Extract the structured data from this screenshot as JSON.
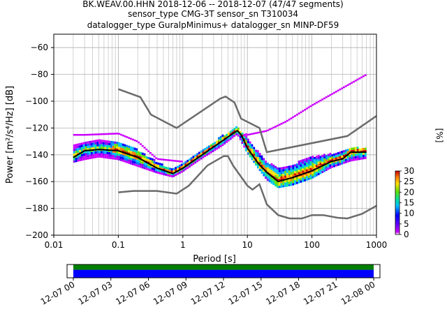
{
  "title": {
    "line1": "BK.WEAV.00.HHN   2018-12-06 -- 2018-12-07  (47/47 segments)",
    "line2": "sensor_type CMG-3T sensor_sn T310034",
    "line3": "datalogger_type GuralpMinimus+ datalogger_sn MINP-DF59"
  },
  "colorbar": {
    "label": "[%]",
    "ticks": [
      "0",
      "5",
      "10",
      "15",
      "20",
      "25",
      "30"
    ],
    "range": [
      0,
      30
    ]
  },
  "colors": {
    "noise_model": "#6b6b6b",
    "mode_line": "#000000",
    "spread_outer": "#cc00ff",
    "spread_mid": "#0000ff",
    "spread_core": "#00e0a0",
    "coverage_green": "#008000",
    "coverage_blue": "#0000ff"
  },
  "chart_data": {
    "type": "ppsd",
    "xlabel": "Period [s]",
    "ylabel": "Power [m²/s⁴/Hz] [dB]",
    "xscale": "log",
    "xlim": [
      0.01,
      1000
    ],
    "ylim": [
      -200,
      -50
    ],
    "xticks": [
      {
        "value": 0.01,
        "label": "0.01"
      },
      {
        "value": 0.1,
        "label": "0.1"
      },
      {
        "value": 1,
        "label": "1"
      },
      {
        "value": 10,
        "label": "10"
      },
      {
        "value": 100,
        "label": "100"
      },
      {
        "value": 1000,
        "label": "1000"
      }
    ],
    "yticks": [
      -60,
      -80,
      -100,
      -120,
      -140,
      -160,
      -180,
      -200
    ],
    "grid": true,
    "nhnm": [
      [
        0.1,
        -91
      ],
      [
        0.22,
        -97
      ],
      [
        0.32,
        -110
      ],
      [
        0.8,
        -120
      ],
      [
        3.8,
        -98
      ],
      [
        4.6,
        -96.5
      ],
      [
        6.3,
        -101
      ],
      [
        8,
        -113
      ],
      [
        15.4,
        -120
      ],
      [
        20,
        -138
      ],
      [
        354.8,
        -126
      ],
      [
        1000,
        -111
      ]
    ],
    "nlnm": [
      [
        0.1,
        -168
      ],
      [
        0.17,
        -167
      ],
      [
        0.4,
        -167
      ],
      [
        0.8,
        -169
      ],
      [
        1.24,
        -163
      ],
      [
        2.4,
        -148
      ],
      [
        4.3,
        -141
      ],
      [
        5,
        -141
      ],
      [
        6,
        -148
      ],
      [
        10,
        -163
      ],
      [
        12,
        -166
      ],
      [
        15.4,
        -162
      ],
      [
        20,
        -177
      ],
      [
        30,
        -185
      ],
      [
        45,
        -187.5
      ],
      [
        70,
        -187.5
      ],
      [
        100,
        -185
      ],
      [
        150,
        -185
      ],
      [
        250,
        -187
      ],
      [
        354.8,
        -187.5
      ],
      [
        600,
        -184
      ],
      [
        1000,
        -178
      ]
    ],
    "mode": [
      [
        0.02,
        -142
      ],
      [
        0.03,
        -137
      ],
      [
        0.05,
        -136
      ],
      [
        0.1,
        -137
      ],
      [
        0.2,
        -142
      ],
      [
        0.4,
        -150
      ],
      [
        0.7,
        -154
      ],
      [
        1,
        -150
      ],
      [
        2,
        -140
      ],
      [
        4,
        -130
      ],
      [
        6,
        -124
      ],
      [
        7,
        -122
      ],
      [
        8,
        -125
      ],
      [
        10,
        -135
      ],
      [
        15,
        -147
      ],
      [
        20,
        -153
      ],
      [
        30,
        -160
      ],
      [
        50,
        -157
      ],
      [
        100,
        -152
      ],
      [
        200,
        -145
      ],
      [
        300,
        -143
      ],
      [
        400,
        -138
      ],
      [
        700,
        -138
      ]
    ],
    "spread_upper": [
      [
        0.02,
        -134
      ],
      [
        0.03,
        -131
      ],
      [
        0.05,
        -130
      ],
      [
        0.1,
        -131
      ],
      [
        0.2,
        -137
      ],
      [
        0.4,
        -146
      ],
      [
        0.7,
        -152
      ],
      [
        1,
        -147
      ],
      [
        2,
        -137
      ],
      [
        4,
        -127
      ],
      [
        7,
        -120
      ],
      [
        10,
        -128
      ],
      [
        15,
        -139
      ],
      [
        20,
        -146
      ],
      [
        30,
        -150
      ],
      [
        50,
        -148
      ],
      [
        100,
        -142
      ],
      [
        200,
        -140
      ],
      [
        400,
        -136
      ],
      [
        700,
        -135
      ]
    ],
    "spread_lower": [
      [
        0.02,
        -146
      ],
      [
        0.03,
        -144
      ],
      [
        0.05,
        -142
      ],
      [
        0.1,
        -144
      ],
      [
        0.2,
        -149
      ],
      [
        0.4,
        -154
      ],
      [
        0.7,
        -157
      ],
      [
        1,
        -153
      ],
      [
        2,
        -143
      ],
      [
        4,
        -134
      ],
      [
        7,
        -125
      ],
      [
        10,
        -139
      ],
      [
        15,
        -151
      ],
      [
        20,
        -159
      ],
      [
        30,
        -165
      ],
      [
        50,
        -163
      ],
      [
        100,
        -158
      ],
      [
        200,
        -150
      ],
      [
        400,
        -145
      ],
      [
        700,
        -143
      ]
    ],
    "outlier_upper": [
      [
        0.03,
        -125
      ],
      [
        0.1,
        -124
      ],
      [
        0.2,
        -130
      ],
      [
        0.4,
        -143
      ],
      [
        1,
        -145
      ],
      [
        7,
        -121
      ],
      [
        10,
        -125
      ],
      [
        20,
        -122
      ],
      [
        40,
        -115
      ],
      [
        100,
        -103
      ],
      [
        300,
        -90
      ],
      [
        700,
        -80
      ]
    ],
    "coverage": {
      "xtick_labels": [
        "12-07 00",
        "12-07 03",
        "12-07 06",
        "12-07 09",
        "12-07 12",
        "12-07 15",
        "12-07 18",
        "12-07 21",
        "12-08 00"
      ],
      "hours_range": [
        0,
        24
      ],
      "view_hours": [
        -0.5,
        24.5
      ]
    }
  }
}
